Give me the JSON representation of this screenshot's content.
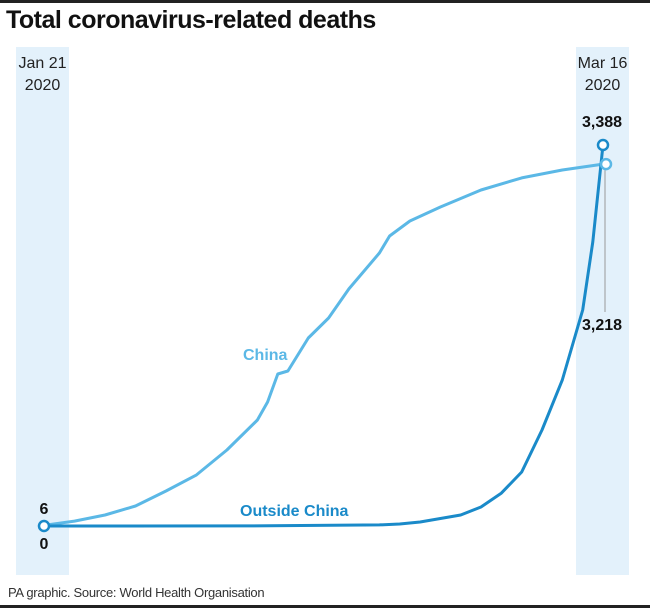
{
  "chart_data": {
    "type": "line",
    "title": "Total coronavirus-related deaths",
    "source": "PA graphic. Source: World Health Organisation",
    "x_range": [
      "2020-01-21",
      "2020-03-16"
    ],
    "x_tick_labels": [
      {
        "month_day": "Jan 21",
        "year": "2020"
      },
      {
        "month_day": "Mar 16",
        "year": "2020"
      }
    ],
    "ylim": [
      0,
      3388
    ],
    "grid": false,
    "colors": {
      "China": "#5bb8e6",
      "Outside China": "#1a8ac9",
      "band": "#e3f1fb"
    },
    "series": [
      {
        "name": "China",
        "start_label": "6",
        "end_label": "3,218",
        "points": [
          [
            "2020-01-21",
            6
          ],
          [
            "2020-01-24",
            44
          ],
          [
            "2020-01-27",
            98
          ],
          [
            "2020-01-30",
            178
          ],
          [
            "2020-02-02",
            311
          ],
          [
            "2020-02-05",
            454
          ],
          [
            "2020-02-08",
            676
          ],
          [
            "2020-02-11",
            943
          ],
          [
            "2020-02-12",
            1103
          ],
          [
            "2020-02-13",
            1352
          ],
          [
            "2020-02-14",
            1378
          ],
          [
            "2020-02-16",
            1672
          ],
          [
            "2020-02-18",
            1850
          ],
          [
            "2020-02-20",
            2108
          ],
          [
            "2020-02-23",
            2428
          ],
          [
            "2020-02-24",
            2579
          ],
          [
            "2020-02-26",
            2712
          ],
          [
            "2020-02-29",
            2837
          ],
          [
            "2020-03-04",
            2988
          ],
          [
            "2020-03-08",
            3095
          ],
          [
            "2020-03-12",
            3166
          ],
          [
            "2020-03-16",
            3218
          ]
        ]
      },
      {
        "name": "Outside China",
        "start_label": "0",
        "end_label": "3,388",
        "points": [
          [
            "2020-01-21",
            0
          ],
          [
            "2020-02-10",
            1
          ],
          [
            "2020-02-23",
            10
          ],
          [
            "2020-02-25",
            18
          ],
          [
            "2020-02-27",
            36
          ],
          [
            "2020-03-02",
            98
          ],
          [
            "2020-03-04",
            169
          ],
          [
            "2020-03-06",
            293
          ],
          [
            "2020-03-08",
            480
          ],
          [
            "2020-03-10",
            854
          ],
          [
            "2020-03-12",
            1298
          ],
          [
            "2020-03-14",
            1921
          ],
          [
            "2020-03-15",
            2526
          ],
          [
            "2020-03-16",
            3388
          ]
        ]
      }
    ]
  }
}
